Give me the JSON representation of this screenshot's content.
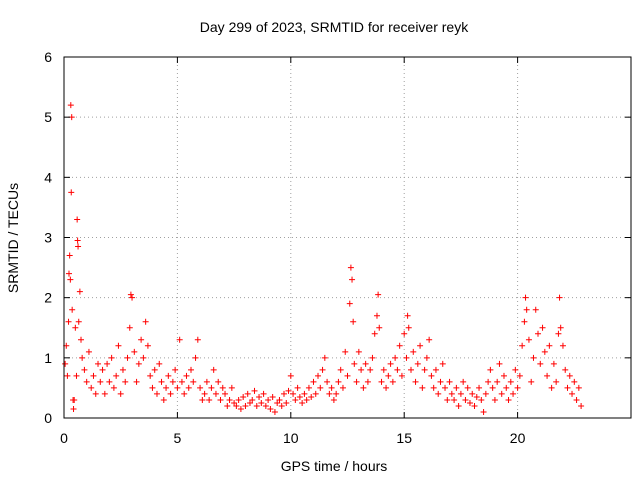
{
  "chart_data": {
    "type": "scatter",
    "title": "Day 299 of 2023, SRMTID for receiver reyk",
    "xlabel": "GPS time / hours",
    "ylabel": "SRMTID / TECUs",
    "xlim": [
      0,
      25
    ],
    "ylim": [
      0,
      6
    ],
    "x_ticks": [
      0,
      5,
      10,
      15,
      20
    ],
    "y_ticks": [
      0,
      1,
      2,
      3,
      4,
      5,
      6
    ],
    "x_tick_labels": [
      "0",
      "5",
      "10",
      "15",
      "20"
    ],
    "y_tick_labels": [
      "0",
      "1",
      "2",
      "3",
      "4",
      "5",
      "6"
    ],
    "grid": true,
    "marker": "+",
    "marker_color": "#ff0000",
    "series": [
      {
        "name": "reyk",
        "points": [
          [
            0.05,
            0.9
          ],
          [
            0.1,
            1.2
          ],
          [
            0.15,
            0.7
          ],
          [
            0.2,
            1.6
          ],
          [
            0.22,
            2.4
          ],
          [
            0.25,
            2.7
          ],
          [
            0.28,
            2.3
          ],
          [
            0.3,
            5.2
          ],
          [
            0.32,
            3.75
          ],
          [
            0.34,
            5.0
          ],
          [
            0.36,
            1.8
          ],
          [
            0.4,
            0.3
          ],
          [
            0.42,
            0.15
          ],
          [
            0.45,
            0.3
          ],
          [
            0.5,
            1.5
          ],
          [
            0.55,
            0.7
          ],
          [
            0.58,
            3.3
          ],
          [
            0.6,
            2.95
          ],
          [
            0.62,
            2.85
          ],
          [
            0.65,
            1.6
          ],
          [
            0.7,
            2.1
          ],
          [
            0.75,
            1.3
          ],
          [
            0.8,
            1.0
          ],
          [
            0.9,
            0.8
          ],
          [
            1.0,
            0.6
          ],
          [
            1.1,
            1.1
          ],
          [
            1.2,
            0.5
          ],
          [
            1.3,
            0.7
          ],
          [
            1.4,
            0.4
          ],
          [
            1.5,
            0.9
          ],
          [
            1.6,
            0.6
          ],
          [
            1.7,
            0.8
          ],
          [
            1.8,
            0.4
          ],
          [
            1.9,
            0.9
          ],
          [
            2.0,
            0.6
          ],
          [
            2.1,
            1.0
          ],
          [
            2.2,
            0.5
          ],
          [
            2.3,
            0.7
          ],
          [
            2.4,
            1.2
          ],
          [
            2.5,
            0.4
          ],
          [
            2.6,
            0.8
          ],
          [
            2.7,
            0.6
          ],
          [
            2.8,
            1.0
          ],
          [
            2.9,
            1.5
          ],
          [
            2.95,
            2.05
          ],
          [
            3.0,
            2.0
          ],
          [
            3.1,
            1.1
          ],
          [
            3.2,
            0.6
          ],
          [
            3.3,
            0.9
          ],
          [
            3.4,
            1.3
          ],
          [
            3.5,
            1.0
          ],
          [
            3.6,
            1.6
          ],
          [
            3.7,
            1.2
          ],
          [
            3.8,
            0.7
          ],
          [
            3.9,
            0.5
          ],
          [
            4.0,
            0.8
          ],
          [
            4.1,
            0.4
          ],
          [
            4.2,
            0.9
          ],
          [
            4.3,
            0.6
          ],
          [
            4.4,
            0.3
          ],
          [
            4.5,
            0.5
          ],
          [
            4.6,
            0.7
          ],
          [
            4.7,
            0.4
          ],
          [
            4.8,
            0.6
          ],
          [
            4.9,
            0.8
          ],
          [
            5.0,
            0.5
          ],
          [
            5.1,
            1.3
          ],
          [
            5.2,
            0.6
          ],
          [
            5.3,
            0.4
          ],
          [
            5.4,
            0.7
          ],
          [
            5.5,
            0.5
          ],
          [
            5.6,
            0.8
          ],
          [
            5.7,
            0.6
          ],
          [
            5.8,
            1.0
          ],
          [
            5.9,
            1.3
          ],
          [
            6.0,
            0.5
          ],
          [
            6.1,
            0.3
          ],
          [
            6.2,
            0.4
          ],
          [
            6.3,
            0.6
          ],
          [
            6.4,
            0.3
          ],
          [
            6.5,
            0.5
          ],
          [
            6.6,
            0.8
          ],
          [
            6.7,
            0.4
          ],
          [
            6.8,
            0.6
          ],
          [
            6.9,
            0.3
          ],
          [
            7.0,
            0.5
          ],
          [
            7.1,
            0.4
          ],
          [
            7.2,
            0.2
          ],
          [
            7.3,
            0.3
          ],
          [
            7.4,
            0.5
          ],
          [
            7.5,
            0.25
          ],
          [
            7.6,
            0.2
          ],
          [
            7.7,
            0.3
          ],
          [
            7.8,
            0.15
          ],
          [
            7.9,
            0.35
          ],
          [
            8.0,
            0.2
          ],
          [
            8.1,
            0.4
          ],
          [
            8.2,
            0.25
          ],
          [
            8.3,
            0.3
          ],
          [
            8.4,
            0.45
          ],
          [
            8.5,
            0.2
          ],
          [
            8.6,
            0.35
          ],
          [
            8.7,
            0.25
          ],
          [
            8.8,
            0.4
          ],
          [
            8.9,
            0.2
          ],
          [
            9.0,
            0.3
          ],
          [
            9.1,
            0.15
          ],
          [
            9.2,
            0.35
          ],
          [
            9.3,
            0.1
          ],
          [
            9.4,
            0.25
          ],
          [
            9.5,
            0.3
          ],
          [
            9.6,
            0.2
          ],
          [
            9.7,
            0.4
          ],
          [
            9.8,
            0.25
          ],
          [
            9.9,
            0.45
          ],
          [
            10.0,
            0.7
          ],
          [
            10.1,
            0.4
          ],
          [
            10.2,
            0.3
          ],
          [
            10.3,
            0.5
          ],
          [
            10.4,
            0.35
          ],
          [
            10.5,
            0.25
          ],
          [
            10.6,
            0.4
          ],
          [
            10.7,
            0.3
          ],
          [
            10.8,
            0.5
          ],
          [
            10.9,
            0.35
          ],
          [
            11.0,
            0.6
          ],
          [
            11.1,
            0.4
          ],
          [
            11.2,
            0.7
          ],
          [
            11.3,
            0.5
          ],
          [
            11.4,
            0.8
          ],
          [
            11.5,
            1.0
          ],
          [
            11.6,
            0.6
          ],
          [
            11.7,
            0.4
          ],
          [
            11.8,
            0.5
          ],
          [
            11.9,
            0.3
          ],
          [
            12.0,
            0.4
          ],
          [
            12.1,
            0.6
          ],
          [
            12.2,
            0.8
          ],
          [
            12.3,
            0.5
          ],
          [
            12.4,
            1.1
          ],
          [
            12.5,
            0.7
          ],
          [
            12.6,
            1.9
          ],
          [
            12.65,
            2.5
          ],
          [
            12.7,
            2.3
          ],
          [
            12.75,
            1.6
          ],
          [
            12.8,
            0.9
          ],
          [
            12.9,
            0.6
          ],
          [
            13.0,
            1.1
          ],
          [
            13.1,
            0.8
          ],
          [
            13.2,
            0.5
          ],
          [
            13.3,
            0.9
          ],
          [
            13.4,
            0.6
          ],
          [
            13.5,
            0.8
          ],
          [
            13.6,
            1.0
          ],
          [
            13.7,
            1.4
          ],
          [
            13.8,
            1.7
          ],
          [
            13.85,
            2.05
          ],
          [
            13.9,
            1.5
          ],
          [
            14.0,
            0.6
          ],
          [
            14.1,
            0.8
          ],
          [
            14.2,
            0.5
          ],
          [
            14.3,
            0.7
          ],
          [
            14.4,
            0.9
          ],
          [
            14.5,
            0.6
          ],
          [
            14.6,
            1.0
          ],
          [
            14.7,
            0.8
          ],
          [
            14.8,
            1.2
          ],
          [
            14.9,
            0.7
          ],
          [
            15.0,
            1.4
          ],
          [
            15.1,
            1.0
          ],
          [
            15.15,
            1.7
          ],
          [
            15.2,
            1.5
          ],
          [
            15.3,
            0.8
          ],
          [
            15.4,
            1.1
          ],
          [
            15.5,
            0.6
          ],
          [
            15.6,
            0.9
          ],
          [
            15.7,
            1.2
          ],
          [
            15.8,
            0.5
          ],
          [
            15.9,
            0.8
          ],
          [
            16.0,
            1.0
          ],
          [
            16.1,
            1.3
          ],
          [
            16.2,
            0.7
          ],
          [
            16.3,
            0.5
          ],
          [
            16.4,
            0.8
          ],
          [
            16.5,
            0.4
          ],
          [
            16.6,
            0.6
          ],
          [
            16.7,
            0.9
          ],
          [
            16.8,
            0.5
          ],
          [
            16.9,
            0.3
          ],
          [
            17.0,
            0.6
          ],
          [
            17.1,
            0.4
          ],
          [
            17.2,
            0.3
          ],
          [
            17.3,
            0.5
          ],
          [
            17.4,
            0.2
          ],
          [
            17.5,
            0.4
          ],
          [
            17.6,
            0.6
          ],
          [
            17.7,
            0.3
          ],
          [
            17.8,
            0.5
          ],
          [
            17.9,
            0.25
          ],
          [
            18.0,
            0.4
          ],
          [
            18.1,
            0.2
          ],
          [
            18.2,
            0.35
          ],
          [
            18.3,
            0.5
          ],
          [
            18.4,
            0.3
          ],
          [
            18.5,
            0.1
          ],
          [
            18.6,
            0.4
          ],
          [
            18.7,
            0.6
          ],
          [
            18.8,
            0.8
          ],
          [
            18.9,
            0.5
          ],
          [
            19.0,
            0.3
          ],
          [
            19.1,
            0.6
          ],
          [
            19.2,
            0.9
          ],
          [
            19.3,
            0.4
          ],
          [
            19.4,
            0.7
          ],
          [
            19.5,
            0.5
          ],
          [
            19.6,
            0.3
          ],
          [
            19.7,
            0.6
          ],
          [
            19.8,
            0.4
          ],
          [
            19.9,
            0.8
          ],
          [
            20.0,
            0.5
          ],
          [
            20.1,
            0.7
          ],
          [
            20.2,
            1.2
          ],
          [
            20.3,
            1.6
          ],
          [
            20.35,
            2.0
          ],
          [
            20.4,
            1.8
          ],
          [
            20.5,
            1.3
          ],
          [
            20.6,
            0.6
          ],
          [
            20.7,
            1.0
          ],
          [
            20.8,
            1.8
          ],
          [
            20.9,
            1.4
          ],
          [
            21.0,
            0.9
          ],
          [
            21.1,
            1.5
          ],
          [
            21.2,
            1.1
          ],
          [
            21.3,
            0.7
          ],
          [
            21.4,
            1.2
          ],
          [
            21.5,
            0.5
          ],
          [
            21.6,
            0.9
          ],
          [
            21.7,
            0.6
          ],
          [
            21.8,
            1.4
          ],
          [
            21.85,
            2.0
          ],
          [
            21.9,
            1.5
          ],
          [
            22.0,
            1.2
          ],
          [
            22.1,
            0.8
          ],
          [
            22.2,
            0.5
          ],
          [
            22.3,
            0.7
          ],
          [
            22.4,
            0.4
          ],
          [
            22.5,
            0.6
          ],
          [
            22.6,
            0.3
          ],
          [
            22.7,
            0.5
          ],
          [
            22.8,
            0.2
          ]
        ]
      }
    ]
  }
}
